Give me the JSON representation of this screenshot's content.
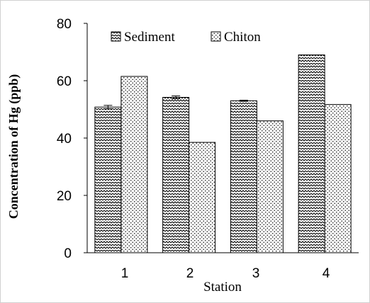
{
  "chart_data": {
    "type": "bar",
    "title": "",
    "xlabel": "Station",
    "ylabel": "Concentration of Hg (ppb)",
    "categories": [
      "1",
      "2",
      "3",
      "4"
    ],
    "ylim": [
      0,
      80
    ],
    "yticks": [
      0,
      20,
      40,
      60,
      80
    ],
    "grid": false,
    "legend_position": "top",
    "series": [
      {
        "name": "Sediment",
        "pattern": "zigzag-hatch",
        "values": [
          50.8,
          54.2,
          53.0,
          69.0
        ],
        "error": [
          0.6,
          0.5,
          0.2,
          0.0
        ]
      },
      {
        "name": "Chiton",
        "pattern": "dots",
        "values": [
          61.5,
          38.5,
          46.0,
          51.7
        ],
        "error": [
          0.0,
          0.0,
          0.0,
          0.0
        ]
      }
    ]
  }
}
